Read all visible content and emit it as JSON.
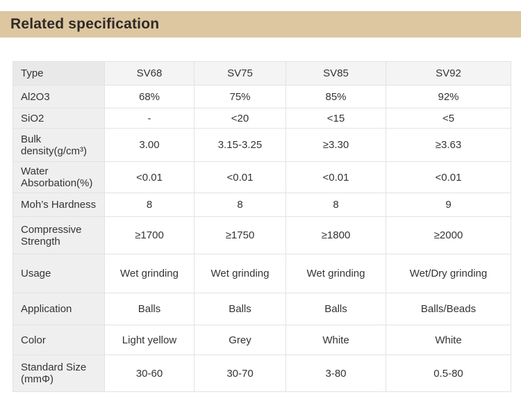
{
  "header": {
    "title": "Related specification"
  },
  "table": {
    "columns": [
      "Type",
      "SV68",
      "SV75",
      "SV85",
      "SV92"
    ],
    "rows": [
      {
        "label": "Al2O3",
        "values": [
          "68%",
          "75%",
          "85%",
          "92%"
        ]
      },
      {
        "label": "SiO2",
        "values": [
          "-",
          "<20",
          "<15",
          "<5"
        ]
      },
      {
        "label": "Bulk density(g/cm³)",
        "values": [
          "3.00",
          "3.15-3.25",
          "≥3.30",
          "≥3.63"
        ]
      },
      {
        "label": "Water Absorbation(%)",
        "values": [
          "<0.01",
          "<0.01",
          "<0.01",
          "<0.01"
        ]
      },
      {
        "label": "Moh’s Hardness",
        "values": [
          "8",
          "8",
          "8",
          "9"
        ]
      },
      {
        "label": "Compressive Strength",
        "values": [
          "≥1700",
          "≥1750",
          "≥1800",
          "≥2000"
        ]
      },
      {
        "label": "Usage",
        "values": [
          "Wet grinding",
          "Wet grinding",
          "Wet grinding",
          "Wet/Dry grinding"
        ]
      },
      {
        "label": "Application",
        "values": [
          "Balls",
          "Balls",
          "Balls",
          "Balls/Beads"
        ]
      },
      {
        "label": "Color",
        "values": [
          "Light yellow",
          "Grey",
          "White",
          "White"
        ]
      },
      {
        "label": "Standard Size (mmΦ)",
        "values": [
          "30-60",
          "30-70",
          "3-80",
          "0.5-80"
        ]
      }
    ]
  }
}
